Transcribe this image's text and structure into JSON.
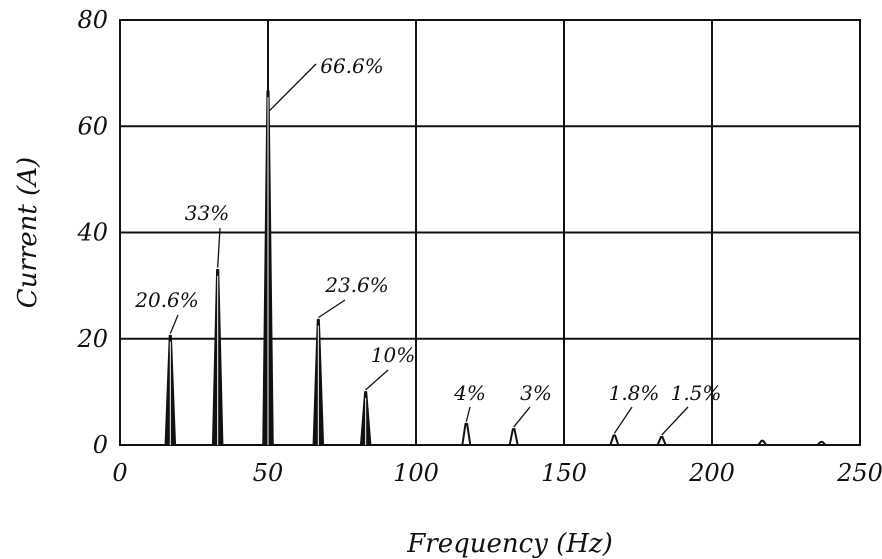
{
  "chart_data": {
    "type": "line",
    "title": "",
    "xlabel": "Frequency (Hz)",
    "ylabel": "Current (A)",
    "xlim": [
      0,
      250
    ],
    "ylim": [
      0,
      80
    ],
    "x_ticks": [
      "0",
      "50",
      "100",
      "150",
      "200",
      "250"
    ],
    "y_ticks": [
      "0",
      "20",
      "40",
      "60",
      "80"
    ],
    "grid": true,
    "legend": "none",
    "colors": {
      "line": "#111111",
      "grid": "#111111",
      "background": "#ffffff"
    },
    "peaks": [
      {
        "x": 17,
        "y": 20.6,
        "label": "20.6%"
      },
      {
        "x": 33,
        "y": 33.0,
        "label": "33%"
      },
      {
        "x": 50,
        "y": 66.6,
        "label": "66.6%"
      },
      {
        "x": 67,
        "y": 23.6,
        "label": "23.6%"
      },
      {
        "x": 83,
        "y": 10.0,
        "label": "10%"
      },
      {
        "x": 117,
        "y": 4.0,
        "label": "4%"
      },
      {
        "x": 133,
        "y": 3.0,
        "label": "3%"
      },
      {
        "x": 167,
        "y": 1.8,
        "label": "1.8%"
      },
      {
        "x": 183,
        "y": 1.5,
        "label": "1.5%"
      },
      {
        "x": 217,
        "y": 0.8,
        "label": ""
      },
      {
        "x": 237,
        "y": 0.6,
        "label": ""
      }
    ]
  }
}
